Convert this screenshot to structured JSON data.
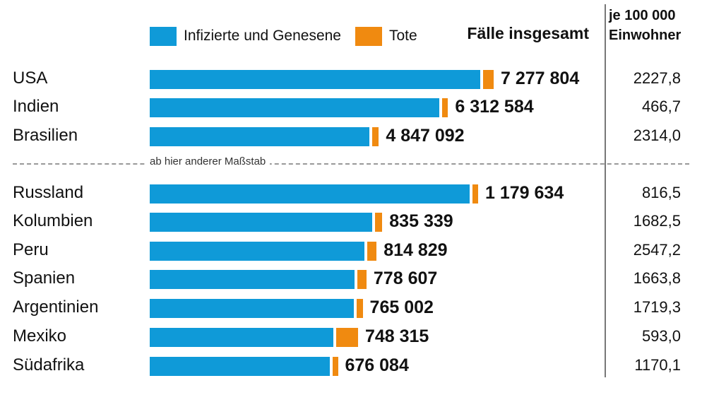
{
  "colors": {
    "infected": "#0f9ad8",
    "deaths": "#f08a10"
  },
  "legend": {
    "infected_label": "Infizierte und Genesene",
    "deaths_label": "Tote"
  },
  "headers": {
    "total": "Fälle insgesamt",
    "per_capita_line1": "je 100 000",
    "per_capita_line2": "Einwohner"
  },
  "divider_label": "ab hier anderer Maßstab",
  "chart_data": {
    "type": "bar",
    "orientation": "horizontal",
    "stacked": true,
    "series": [
      {
        "name": "Infizierte und Genesene"
      },
      {
        "name": "Tote"
      }
    ],
    "groups": [
      {
        "scale": "group 1",
        "rows": [
          {
            "country": "USA",
            "total": 7277804,
            "total_label": "7 277 804",
            "deaths_share": 0.03,
            "per_100000": "2227,8"
          },
          {
            "country": "Indien",
            "total": 6312584,
            "total_label": "6 312 584",
            "deaths_share": 0.016,
            "per_100000": "466,7"
          },
          {
            "country": "Brasilien",
            "total": 4847092,
            "total_label": "4 847 092",
            "deaths_share": 0.03,
            "per_100000": "2314,0"
          }
        ]
      },
      {
        "scale": "group 2",
        "rows": [
          {
            "country": "Russland",
            "total": 1179634,
            "total_label": "1 179 634",
            "deaths_share": 0.018,
            "per_100000": "816,5"
          },
          {
            "country": "Kolumbien",
            "total": 835339,
            "total_label": "835 339",
            "deaths_share": 0.031,
            "per_100000": "1682,5"
          },
          {
            "country": "Peru",
            "total": 814829,
            "total_label": "814 829",
            "deaths_share": 0.04,
            "per_100000": "2547,2"
          },
          {
            "country": "Spanien",
            "total": 778607,
            "total_label": "778 607",
            "deaths_share": 0.042,
            "per_100000": "1663,8"
          },
          {
            "country": "Argentinien",
            "total": 765002,
            "total_label": "765 002",
            "deaths_share": 0.027,
            "per_100000": "1719,3"
          },
          {
            "country": "Mexiko",
            "total": 748315,
            "total_label": "748 315",
            "deaths_share": 0.104,
            "per_100000": "593,0"
          },
          {
            "country": "Südafrika",
            "total": 676084,
            "total_label": "676 084",
            "deaths_share": 0.025,
            "per_100000": "1170,1"
          }
        ]
      }
    ]
  }
}
